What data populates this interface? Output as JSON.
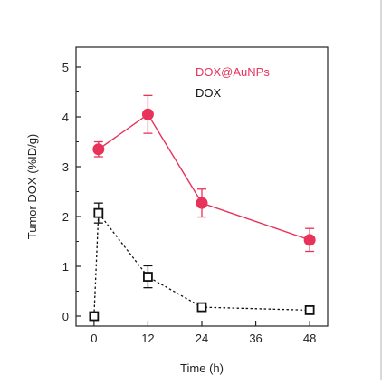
{
  "chart_data": {
    "type": "line",
    "xlabel": "Time (h)",
    "ylabel": "Tumor DOX (%ID/g)",
    "xlim": [
      -4,
      52
    ],
    "ylim": [
      -0.2,
      5.4
    ],
    "xticks": [
      0,
      12,
      24,
      36,
      48
    ],
    "yticks": [
      0,
      1,
      2,
      3,
      4,
      5
    ],
    "grid": false,
    "legend": "top-right",
    "series": [
      {
        "name": "DOX@AuNPs",
        "color": "#e8325a",
        "marker": "filled-circle",
        "line": "solid",
        "x": [
          1,
          12,
          24,
          48
        ],
        "y": [
          3.35,
          4.05,
          2.27,
          1.53
        ],
        "err": [
          0.15,
          0.38,
          0.28,
          0.23
        ]
      },
      {
        "name": "DOX",
        "color": "#111111",
        "marker": "open-square",
        "line": "dotted",
        "x": [
          0,
          1,
          12,
          24,
          48
        ],
        "y": [
          0.0,
          2.07,
          0.79,
          0.18,
          0.12
        ],
        "err": [
          0.0,
          0.2,
          0.22,
          0.0,
          0.0
        ]
      }
    ]
  }
}
